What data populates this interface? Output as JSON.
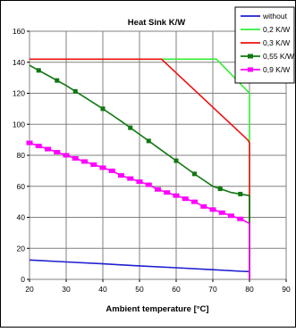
{
  "chart_data": {
    "type": "line",
    "title": "Heat Sink K/W",
    "xlabel": "Ambient temperature  [°C]",
    "ylabel": "",
    "xlim": [
      20,
      90
    ],
    "ylim": [
      0,
      160
    ],
    "xticks": [
      "20",
      "30",
      "40",
      "50",
      "60",
      "70",
      "80",
      "90"
    ],
    "yticks": [
      "0",
      "20",
      "40",
      "60",
      "80",
      "100",
      "120",
      "140",
      "160"
    ],
    "grid": true,
    "legend_position": "top-right",
    "series": [
      {
        "name": "without",
        "color": "#1f1fd0",
        "marker": "none",
        "points": [
          [
            20,
            12.5
          ],
          [
            30,
            11.2
          ],
          [
            40,
            10
          ],
          [
            50,
            8.7
          ],
          [
            60,
            7.5
          ],
          [
            70,
            6.2
          ],
          [
            78,
            5.2
          ],
          [
            80,
            5
          ]
        ]
      },
      {
        "name": "0,2 K/W",
        "color": "#33ee33",
        "marker": "none",
        "points": [
          [
            20,
            142
          ],
          [
            71,
            142
          ],
          [
            80,
            120
          ],
          [
            80,
            0
          ]
        ]
      },
      {
        "name": "0,3 K/W",
        "color": "#ee1111",
        "marker": "none",
        "points": [
          [
            20,
            142
          ],
          [
            56,
            142
          ],
          [
            79.5,
            90
          ],
          [
            80,
            88
          ],
          [
            80,
            0
          ]
        ]
      },
      {
        "name": "0,55 K/W",
        "color": "#117711",
        "marker": "square",
        "points": [
          [
            20,
            138
          ],
          [
            25,
            131.5
          ],
          [
            30,
            125
          ],
          [
            35,
            117.5
          ],
          [
            40,
            110
          ],
          [
            45,
            102
          ],
          [
            50,
            93.5
          ],
          [
            55,
            85
          ],
          [
            60,
            76.5
          ],
          [
            65,
            68
          ],
          [
            70,
            60
          ],
          [
            75,
            56
          ],
          [
            80,
            54
          ],
          [
            80,
            0
          ]
        ],
        "marker_x": [
          22.5,
          27.5,
          32.5,
          40,
          47.5,
          52.5,
          60,
          65,
          72,
          77.5
        ]
      },
      {
        "name": "0,9 K/W",
        "color": "#ff00ff",
        "marker": "square",
        "points": [
          [
            20,
            88
          ],
          [
            22.5,
            86
          ],
          [
            25,
            84
          ],
          [
            27.5,
            82
          ],
          [
            30,
            80
          ],
          [
            32.5,
            78
          ],
          [
            35,
            76
          ],
          [
            37.5,
            74
          ],
          [
            40,
            72
          ],
          [
            42.5,
            70
          ],
          [
            45,
            67
          ],
          [
            47.5,
            65
          ],
          [
            50,
            63
          ],
          [
            52.5,
            61
          ],
          [
            55,
            58
          ],
          [
            57.5,
            56
          ],
          [
            60,
            54
          ],
          [
            62.5,
            52
          ],
          [
            65,
            50
          ],
          [
            67.5,
            47
          ],
          [
            70,
            45
          ],
          [
            72.5,
            43
          ],
          [
            75,
            41
          ],
          [
            77.5,
            39
          ],
          [
            80,
            36
          ],
          [
            80,
            0
          ]
        ],
        "marker_x": [
          20,
          22.5,
          25,
          27.5,
          30,
          32.5,
          35,
          37.5,
          40,
          42.5,
          45,
          47.5,
          50,
          52.5,
          55,
          57.5,
          60,
          62.5,
          65,
          67.5,
          70,
          72.5,
          75,
          77.5
        ]
      }
    ]
  }
}
